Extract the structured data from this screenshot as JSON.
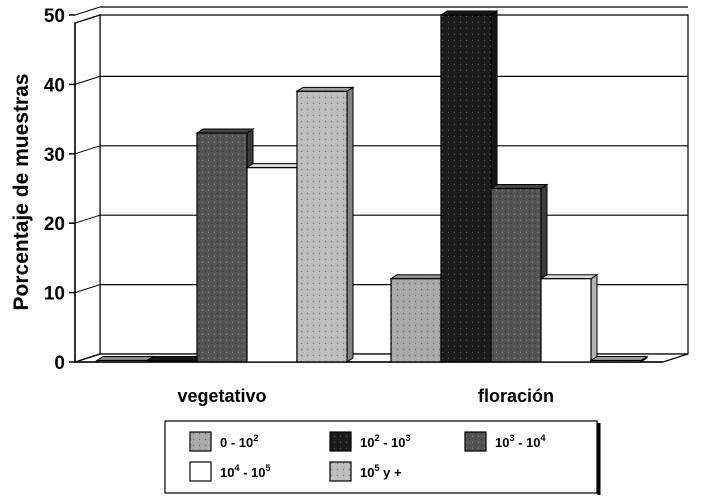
{
  "chart_data": {
    "type": "bar",
    "ylabel": "Porcentaje de muestras",
    "xlabel": "",
    "ylim": [
      0,
      50
    ],
    "yticks": [
      "0",
      "10",
      "20",
      "30",
      "40",
      "50"
    ],
    "grid": true,
    "legend_position": "bottom",
    "categories": [
      "vegetativo",
      "floración"
    ],
    "series": [
      {
        "name": "0 - 10^2",
        "label_base": "0 - 10",
        "label_exp": "2",
        "values": [
          0,
          12
        ],
        "color": "#a9a9a9"
      },
      {
        "name": "10^2 - 10^3",
        "label_base": "10",
        "label_exp": "2",
        "label_mid": " - 10",
        "label_exp2": "3",
        "values": [
          0,
          50
        ],
        "color": "#1c1c1c"
      },
      {
        "name": "10^3 - 10^4",
        "label_base": "10",
        "label_exp": "3",
        "label_mid": " - 10",
        "label_exp2": "4",
        "values": [
          33,
          25
        ],
        "color": "#545454"
      },
      {
        "name": "10^4 - 10^5",
        "label_base": "10",
        "label_exp": "4",
        "label_mid": " - 10",
        "label_exp2": "5",
        "values": [
          28,
          12
        ],
        "color": "#ffffff"
      },
      {
        "name": "10^5 y +",
        "label_base": "10",
        "label_exp": "5",
        "label_mid": " y +",
        "label_exp2": "",
        "values": [
          39,
          0
        ],
        "color": "#bdbdbd"
      }
    ]
  }
}
